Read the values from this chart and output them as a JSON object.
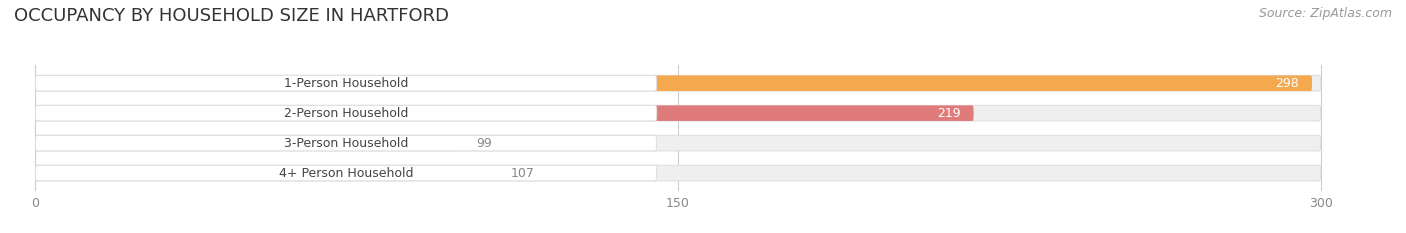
{
  "title": "OCCUPANCY BY HOUSEHOLD SIZE IN HARTFORD",
  "source": "Source: ZipAtlas.com",
  "categories": [
    "1-Person Household",
    "2-Person Household",
    "3-Person Household",
    "4+ Person Household"
  ],
  "values": [
    298,
    219,
    99,
    107
  ],
  "bar_colors": [
    "#F5A94E",
    "#E07B7B",
    "#A8C4E0",
    "#C9A8D4"
  ],
  "track_color": "#efefef",
  "track_border": "#e0e0e0",
  "label_box_color": "#ffffff",
  "xlim": [
    -5,
    315
  ],
  "data_max": 300,
  "xticks": [
    0,
    150,
    300
  ],
  "bar_height": 0.52,
  "figsize": [
    14.06,
    2.33
  ],
  "dpi": 100,
  "title_fontsize": 13,
  "source_fontsize": 9,
  "label_fontsize": 9,
  "value_fontsize": 9,
  "tick_fontsize": 9,
  "background_color": "#ffffff",
  "grid_color": "#cccccc",
  "label_text_color": "#444444",
  "value_text_color_inside": "#ffffff",
  "value_text_color_outside": "#888888"
}
